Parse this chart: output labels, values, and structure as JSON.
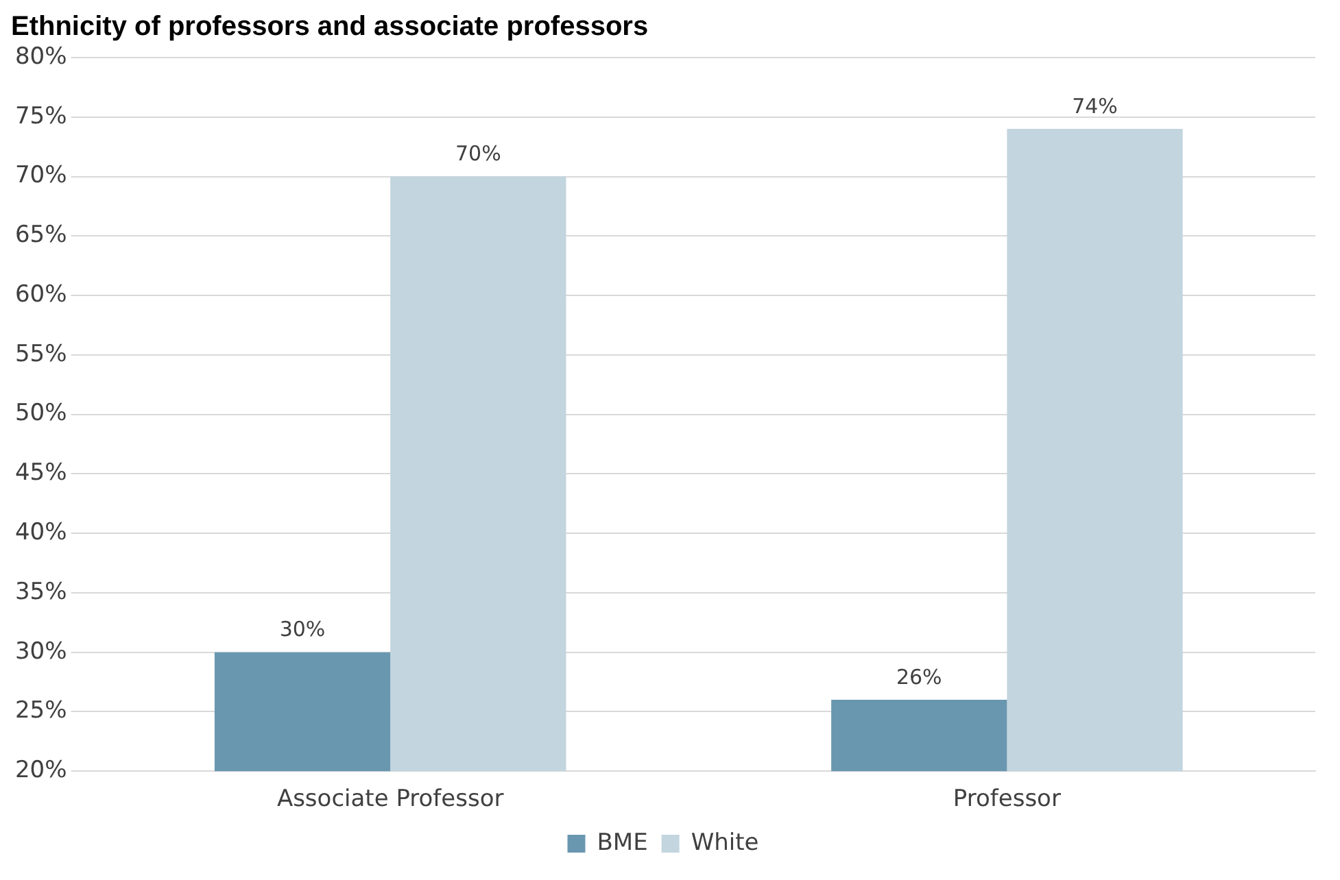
{
  "chart_data": {
    "type": "bar",
    "title": "Ethnicity of professors and associate professors",
    "categories": [
      "Associate Professor",
      "Professor"
    ],
    "series": [
      {
        "name": "BME",
        "color": "#6a97b0",
        "values": [
          30,
          26
        ],
        "value_labels": [
          "30%",
          "26%"
        ]
      },
      {
        "name": "White",
        "color": "#c3d5df",
        "values": [
          70,
          74
        ],
        "value_labels": [
          "70%",
          "74%"
        ]
      }
    ],
    "ylim": [
      20,
      80
    ],
    "yticks": [
      {
        "value": 20,
        "label": "20%"
      },
      {
        "value": 25,
        "label": "25%"
      },
      {
        "value": 30,
        "label": "30%"
      },
      {
        "value": 35,
        "label": "35%"
      },
      {
        "value": 40,
        "label": "40%"
      },
      {
        "value": 45,
        "label": "45%"
      },
      {
        "value": 50,
        "label": "50%"
      },
      {
        "value": 55,
        "label": "55%"
      },
      {
        "value": 60,
        "label": "60%"
      },
      {
        "value": 65,
        "label": "65%"
      },
      {
        "value": 70,
        "label": "70%"
      },
      {
        "value": 75,
        "label": "75%"
      },
      {
        "value": 80,
        "label": "80%"
      }
    ],
    "grid": "y",
    "legend": "bottom"
  }
}
